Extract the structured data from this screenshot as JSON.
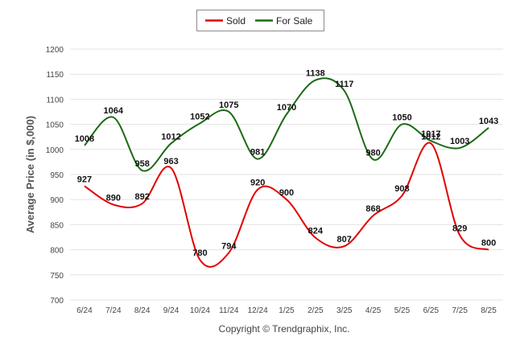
{
  "chart_data": {
    "type": "line",
    "categories": [
      "6/24",
      "7/24",
      "8/24",
      "9/24",
      "10/24",
      "11/24",
      "12/24",
      "1/25",
      "2/25",
      "3/25",
      "4/25",
      "5/25",
      "6/25",
      "7/25",
      "8/25"
    ],
    "series": [
      {
        "name": "Sold",
        "color": "#e00000",
        "values": [
          927,
          890,
          892,
          963,
          780,
          794,
          920,
          900,
          824,
          807,
          868,
          908,
          1012,
          829,
          800
        ]
      },
      {
        "name": "For Sale",
        "color": "#1a6b12",
        "values": [
          1008,
          1064,
          958,
          1012,
          1052,
          1075,
          981,
          1070,
          1138,
          1117,
          980,
          1050,
          1017,
          1003,
          1043
        ]
      }
    ],
    "ylabel": "Average Price (in $,000)",
    "xlabel": "",
    "ylim": [
      700,
      1200
    ],
    "yticks": [
      700,
      750,
      800,
      850,
      900,
      950,
      1000,
      1050,
      1100,
      1150,
      1200
    ],
    "grid": true,
    "legend_position": "top-center",
    "footer": "Copyright © Trendgraphix, Inc."
  }
}
